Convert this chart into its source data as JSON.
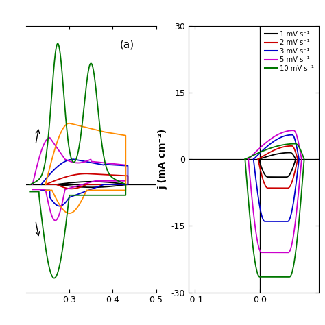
{
  "colors": {
    "1mV": "#000000",
    "2mV": "#cc0000",
    "3mV": "#0000cc",
    "5mV": "#cc00cc",
    "10mV": "#007700",
    "orange": "#FF8C00"
  },
  "legend": [
    {
      "label": "1 mV s⁻¹",
      "color": "#000000"
    },
    {
      "label": "2 mV s⁻¹",
      "color": "#cc0000"
    },
    {
      "label": "3 mV s⁻¹",
      "color": "#0000cc"
    },
    {
      "label": "5 mV s⁻¹",
      "color": "#cc00cc"
    },
    {
      "label": "10 mV s⁻¹",
      "color": "#007700"
    }
  ],
  "left": {
    "xlim": [
      0.2,
      0.5
    ],
    "xticks": [
      0.3,
      0.4,
      0.5
    ]
  },
  "right": {
    "xlim": [
      -0.11,
      0.09
    ],
    "ylim": [
      -30,
      30
    ],
    "xticks": [
      -0.1,
      0.0
    ],
    "yticks": [
      -30,
      -15,
      0,
      15,
      30
    ]
  },
  "ylabel": "j (mA cm⁻²)"
}
